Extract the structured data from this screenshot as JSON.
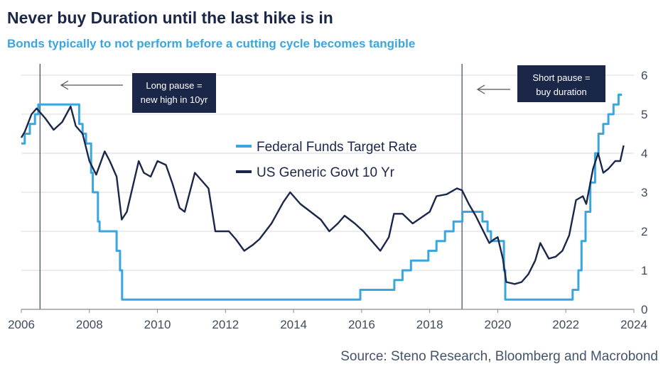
{
  "title": "Never buy Duration until the last hike is in",
  "subtitle": "Bonds typically to not perform before a cutting cycle becomes tangible",
  "source": "Source: Steno Research, Bloomberg and Macrobond",
  "colors": {
    "title": "#1b2749",
    "subtitle": "#39a6e0",
    "fed": "#39a6e0",
    "ten_year": "#1b2749",
    "note_box": "#1b2749"
  },
  "annotations": [
    {
      "lines": [
        "Long pause =",
        "new high in 10yr"
      ],
      "at_year": 2006.55
    },
    {
      "lines": [
        "Short pause =",
        "buy duration"
      ],
      "at_year": 2018.95
    }
  ],
  "chart_data": {
    "type": "line",
    "xlim": [
      2006,
      2024
    ],
    "ylim": [
      0,
      6
    ],
    "x_ticks": [
      2006,
      2008,
      2010,
      2012,
      2014,
      2016,
      2018,
      2020,
      2022,
      2024
    ],
    "y_ticks": [
      0,
      1,
      2,
      3,
      4,
      5,
      6
    ],
    "y_axis_side": "right",
    "grid": true,
    "legend_position": "center",
    "vlines": [
      2006.55,
      2018.95
    ],
    "series": [
      {
        "name": "Federal Funds Target Rate",
        "style": "step",
        "x": [
          2006.0,
          2006.1,
          2006.25,
          2006.4,
          2006.5,
          2007.7,
          2007.8,
          2007.9,
          2008.05,
          2008.1,
          2008.25,
          2008.3,
          2008.8,
          2008.9,
          2008.96,
          2015.96,
          2016.96,
          2017.2,
          2017.45,
          2017.96,
          2018.2,
          2018.45,
          2018.7,
          2018.96,
          2019.55,
          2019.7,
          2019.8,
          2020.18,
          2020.22,
          2022.2,
          2022.37,
          2022.46,
          2022.58,
          2022.72,
          2022.86,
          2022.96,
          2023.1,
          2023.25,
          2023.4,
          2023.55,
          2023.65
        ],
        "values": [
          4.25,
          4.5,
          4.75,
          5.0,
          5.25,
          4.75,
          4.5,
          4.25,
          3.5,
          3.0,
          2.25,
          2.0,
          1.5,
          1.0,
          0.25,
          0.5,
          0.75,
          1.0,
          1.25,
          1.5,
          1.75,
          2.0,
          2.25,
          2.5,
          2.25,
          2.0,
          1.75,
          1.0,
          0.25,
          0.5,
          1.0,
          1.75,
          2.5,
          3.25,
          4.0,
          4.5,
          4.75,
          5.0,
          5.25,
          5.5,
          5.5
        ]
      },
      {
        "name": "US Generic Govt 10 Yr",
        "style": "line",
        "x": [
          2006.0,
          2006.1,
          2006.3,
          2006.45,
          2006.7,
          2006.95,
          2007.2,
          2007.45,
          2007.6,
          2007.8,
          2008.0,
          2008.2,
          2008.45,
          2008.6,
          2008.8,
          2008.95,
          2009.1,
          2009.45,
          2009.6,
          2009.8,
          2010.0,
          2010.25,
          2010.45,
          2010.65,
          2010.8,
          2011.1,
          2011.3,
          2011.5,
          2011.7,
          2011.85,
          2012.1,
          2012.3,
          2012.55,
          2012.8,
          2013.0,
          2013.35,
          2013.7,
          2013.9,
          2014.2,
          2014.5,
          2014.8,
          2015.05,
          2015.3,
          2015.5,
          2015.8,
          2016.05,
          2016.3,
          2016.55,
          2016.8,
          2016.95,
          2017.2,
          2017.5,
          2017.75,
          2018.0,
          2018.2,
          2018.5,
          2018.8,
          2018.95,
          2019.15,
          2019.35,
          2019.55,
          2019.75,
          2019.9,
          2020.0,
          2020.15,
          2020.25,
          2020.5,
          2020.7,
          2020.9,
          2021.1,
          2021.25,
          2021.5,
          2021.7,
          2021.9,
          2022.1,
          2022.3,
          2022.5,
          2022.6,
          2022.8,
          2022.95,
          2023.1,
          2023.25,
          2023.45,
          2023.6,
          2023.7
        ],
        "values": [
          4.4,
          4.55,
          5.0,
          5.15,
          4.9,
          4.6,
          4.8,
          5.2,
          4.7,
          4.5,
          3.8,
          3.45,
          4.05,
          3.8,
          3.4,
          2.3,
          2.5,
          3.8,
          3.5,
          3.4,
          3.8,
          3.7,
          3.2,
          2.6,
          2.5,
          3.5,
          3.3,
          3.1,
          2.0,
          2.0,
          2.0,
          1.8,
          1.5,
          1.65,
          1.8,
          2.2,
          2.75,
          3.0,
          2.7,
          2.5,
          2.3,
          2.0,
          2.2,
          2.4,
          2.2,
          2.0,
          1.75,
          1.5,
          1.85,
          2.45,
          2.45,
          2.2,
          2.35,
          2.5,
          2.9,
          2.95,
          3.1,
          3.05,
          2.7,
          2.4,
          2.05,
          1.7,
          1.8,
          1.85,
          1.3,
          0.7,
          0.65,
          0.7,
          0.9,
          1.25,
          1.7,
          1.3,
          1.35,
          1.5,
          1.9,
          2.8,
          2.9,
          2.7,
          3.6,
          4.0,
          3.5,
          3.6,
          3.8,
          3.8,
          4.2
        ]
      }
    ]
  }
}
